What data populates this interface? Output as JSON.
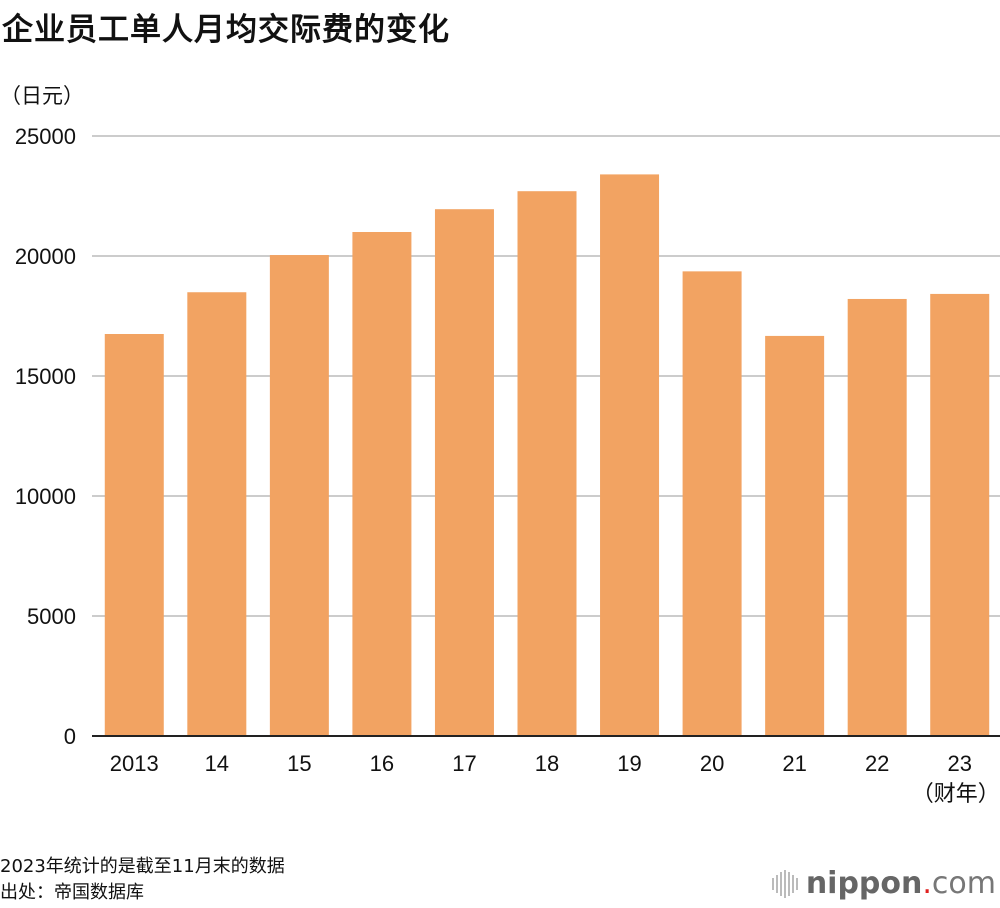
{
  "title": "企业员工单人月均交际费的变化",
  "unit_label": "（日元）",
  "notes": [
    "2023年统计的是截至11月末的数据",
    "出处：帝国数据库"
  ],
  "logo": {
    "name": "nippon",
    "dot": ".",
    "suffix": "com"
  },
  "chart_data": {
    "type": "bar",
    "title": "企业员工单人月均交际费的变化",
    "ylabel": "（日元）",
    "xlabel": "",
    "categories": [
      "2013",
      "14",
      "15",
      "16",
      "17",
      "18",
      "19",
      "20",
      "21",
      "22",
      "23"
    ],
    "x_suffix_last": "（财年）",
    "values": [
      16750,
      18490,
      20040,
      21000,
      21950,
      22700,
      23400,
      19360,
      16670,
      18210,
      18420
    ],
    "ylim": [
      0,
      25000
    ],
    "yticks": [
      "0",
      "5000",
      "10000",
      "15000",
      "20000",
      "25000"
    ],
    "grid": true,
    "bar_color": "#f2a362",
    "grid_color": "#cccccc"
  }
}
